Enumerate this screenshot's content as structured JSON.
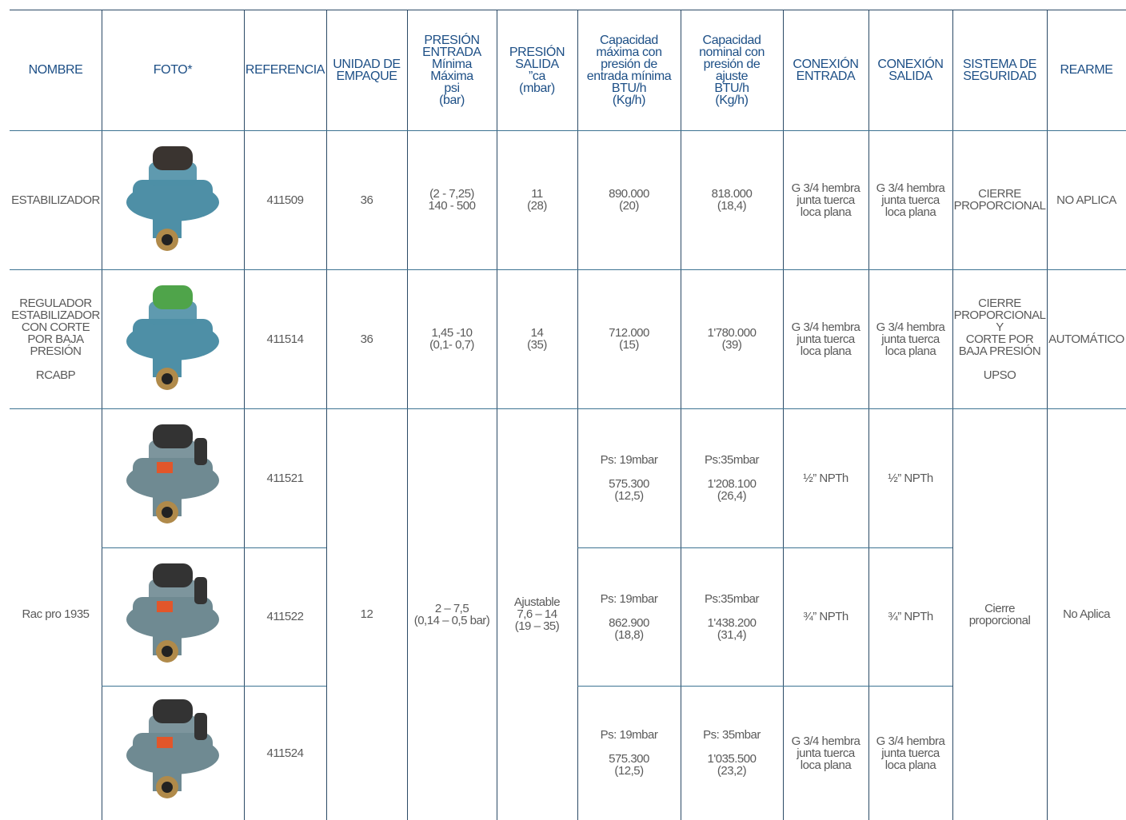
{
  "table": {
    "header": [
      "NOMBRE",
      "FOTO*",
      "REFERENCIA",
      "UNIDAD DE\nEMPAQUE",
      "PRESIÓN\nENTRADA\nMínima\nMáxima\npsi\n(bar)",
      "PRESIÓN\nSALIDA\n”ca\n(mbar)",
      "Capacidad\nmáxima con\npresión de\nentrada mínima\nBTU/h\n(Kg/h)",
      "Capacidad\nnominal con\npresión de\najuste\nBTU/h\n(Kg/h)",
      "CONEXIÓN\nENTRADA",
      "CONEXIÓN\nSALIDA",
      "SISTEMA DE\nSEGURIDAD",
      "REARME"
    ],
    "rows": [
      {
        "nombre": "ESTABILIZADOR",
        "referencia": "411509",
        "unidad": "36",
        "presion_entrada": "(2 - 7,25)\n140 - 500",
        "presion_salida": "11\n(28)",
        "cap_max": "890.000\n(20)",
        "cap_nom": "818.000\n(18,4)",
        "conexion_entrada": "G 3/4 hembra\njunta  tuerca\nloca plana",
        "conexion_salida": "G 3/4 hembra\njunta  tuerca\nloca plana",
        "seguridad": "CIERRE\nPROPORCIONAL",
        "rearme": "NO APLICA"
      },
      {
        "nombre": "REGULADOR\nESTABILIZADOR\nCON CORTE\nPOR BAJA\nPRESIÓN\n\nRCABP",
        "referencia": "411514",
        "unidad": "36",
        "presion_entrada": "1,45 -10\n(0,1- 0,7)",
        "presion_salida": "14\n(35)",
        "cap_max": "712.000\n(15)",
        "cap_nom": "1'780.000\n(39)",
        "conexion_entrada": "G 3/4 hembra\njunta  tuerca\nloca plana",
        "conexion_salida": "G 3/4 hembra\njunta  tuerca\nloca plana",
        "seguridad": "CIERRE\nPROPORCIONAL\nY\nCORTE POR\nBAJA PRESIÓN\n\nUPSO",
        "rearme": "AUTOMÁTICO"
      },
      {
        "nombre": "Rac pro 1935",
        "unidad": "12",
        "presion_entrada": "2 – 7,5\n(0,14 – 0,5 bar)",
        "presion_salida": "Ajustable\n7,6 – 14\n(19 – 35)",
        "seguridad": "Cierre\nproporcional",
        "rearme": "No Aplica",
        "variants": [
          {
            "referencia": "411521",
            "cap_max": "Ps: 19mbar\n\n575.300\n(12,5)",
            "cap_nom": "Ps:35mbar\n\n1'208.100\n(26,4)",
            "conexion_entrada": "½” NPTh",
            "conexion_salida": "½” NPTh"
          },
          {
            "referencia": "411522",
            "cap_max": "Ps: 19mbar\n\n862.900\n(18,8)",
            "cap_nom": "Ps:35mbar\n\n1'438.200\n(31,4)",
            "conexion_entrada": "¾” NPTh",
            "conexion_salida": "¾” NPTh"
          },
          {
            "referencia": "411524",
            "cap_max": "Ps: 19mbar\n\n575.300\n(12,5)",
            "cap_nom": "Ps: 35mbar\n\n1'035.500\n(23,2)",
            "conexion_entrada": "G 3/4 hembra\njunta tuerca\nloca plana",
            "conexion_salida": "G 3/4 hembra\njunta tuerca\nloca plana"
          }
        ]
      }
    ]
  }
}
